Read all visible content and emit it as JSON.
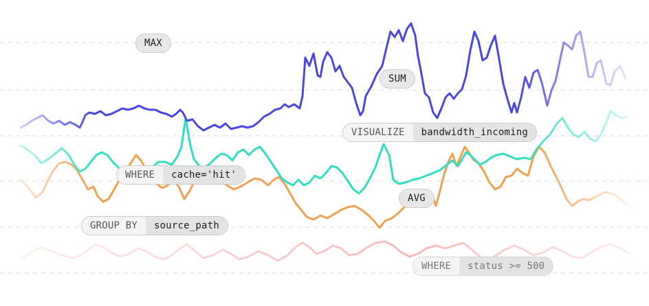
{
  "labels": {
    "max": "MAX",
    "sum": "SUM",
    "avg": "AVG"
  },
  "clauses": {
    "visualize": {
      "keyword": "VISUALIZE",
      "value": "bandwidth_incoming"
    },
    "where_cache": {
      "keyword": "WHERE",
      "value": "cache='hit'"
    },
    "group_by": {
      "keyword": "GROUP BY",
      "value": "source_path"
    },
    "where_status": {
      "keyword": "WHERE",
      "value": "status >= 500"
    }
  },
  "colors": {
    "blue": "#4a46e0",
    "teal": "#2fdfc0",
    "orange": "#f2a04e",
    "pink": "#f3a3a3",
    "grid": "#e2e2e2"
  }
}
